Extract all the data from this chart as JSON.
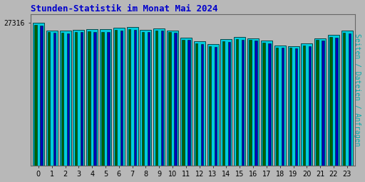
{
  "title": "Stunden-Statistik im Monat Mai 2024",
  "title_color": "#0000cc",
  "background_color": "#b8b8b8",
  "plot_bg_color": "#b8b8b8",
  "ylabel": "Seiten / Dateien / Anfragen",
  "ylabel_color": "#00aaaa",
  "ytick_label": "27316",
  "hours": [
    0,
    1,
    2,
    3,
    4,
    5,
    6,
    7,
    8,
    9,
    10,
    11,
    12,
    13,
    14,
    15,
    16,
    17,
    18,
    19,
    20,
    21,
    22,
    23
  ],
  "anfragen": [
    27316,
    25900,
    25800,
    26000,
    26100,
    26050,
    26400,
    26500,
    26000,
    26300,
    25900,
    24500,
    23800,
    23200,
    24200,
    24600,
    24400,
    23900,
    23000,
    22900,
    23400,
    24400,
    25000,
    25800
  ],
  "dateien": [
    26800,
    25400,
    25300,
    25500,
    25600,
    25500,
    25900,
    26000,
    25500,
    25800,
    25400,
    24000,
    23300,
    22700,
    23700,
    24100,
    23900,
    23400,
    22500,
    22400,
    22900,
    23900,
    24500,
    25300
  ],
  "seiten": [
    26900,
    25500,
    25400,
    25600,
    25700,
    25600,
    26000,
    26100,
    25600,
    25900,
    25500,
    24100,
    23400,
    22800,
    23800,
    24200,
    24000,
    23500,
    22600,
    22500,
    23000,
    24000,
    24600,
    25400
  ],
  "ymax": 29000,
  "seiten_color": "#006600",
  "dateien_color": "#0000bb",
  "anfragen_color": "#00ccdd",
  "border_color": "#003333",
  "title_fontsize": 9,
  "tick_fontsize": 7,
  "ylabel_fontsize": 7
}
